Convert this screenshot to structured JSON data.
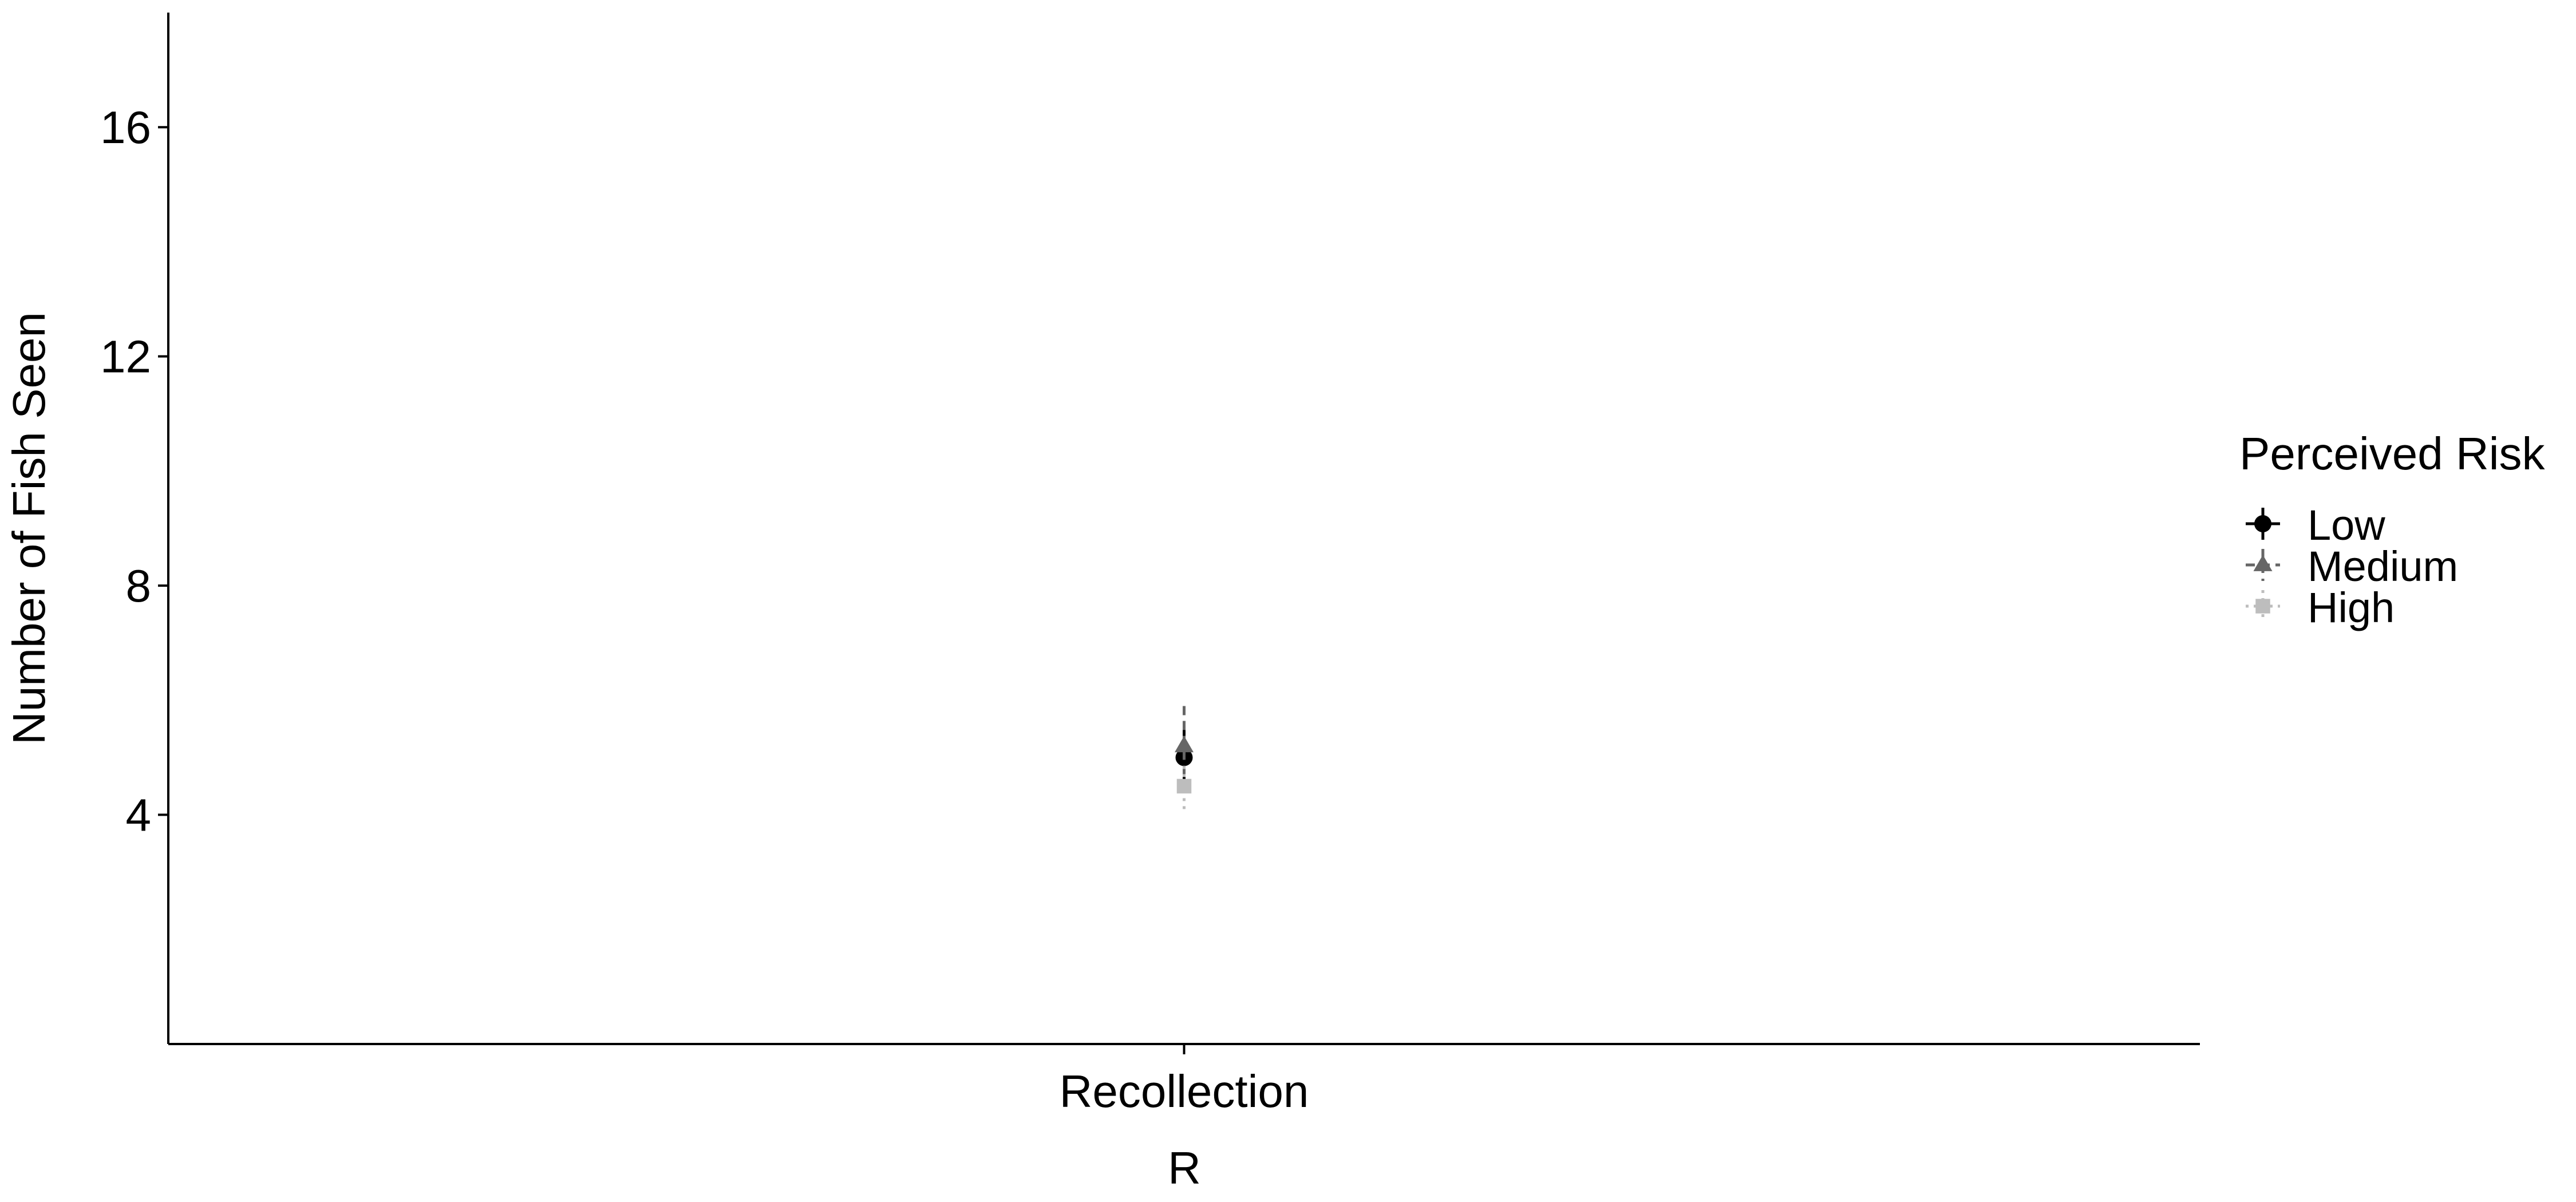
{
  "chart_data": {
    "type": "scatter",
    "title": "",
    "xlabel": "R",
    "ylabel": "Number of Fish Seen",
    "categories": [
      "Recollection"
    ],
    "yticks": [
      4,
      8,
      12,
      16
    ],
    "ylim": [
      0,
      18
    ],
    "grid": false,
    "legend": {
      "title": "Perceived Risk",
      "position": "right"
    },
    "series": [
      {
        "name": "Low",
        "marker": "circle",
        "color": "#000000",
        "linestyle": "solid",
        "values": [
          5.0
        ],
        "lower": [
          4.6
        ],
        "upper": [
          5.6
        ]
      },
      {
        "name": "Medium",
        "marker": "triangle",
        "color": "#666666",
        "linestyle": "dashed",
        "values": [
          5.2
        ],
        "lower": [
          4.7
        ],
        "upper": [
          5.9
        ]
      },
      {
        "name": "High",
        "marker": "square",
        "color": "#bdbdbd",
        "linestyle": "dotted",
        "values": [
          4.5
        ],
        "lower": [
          4.1
        ],
        "upper": [
          4.9
        ]
      }
    ]
  }
}
